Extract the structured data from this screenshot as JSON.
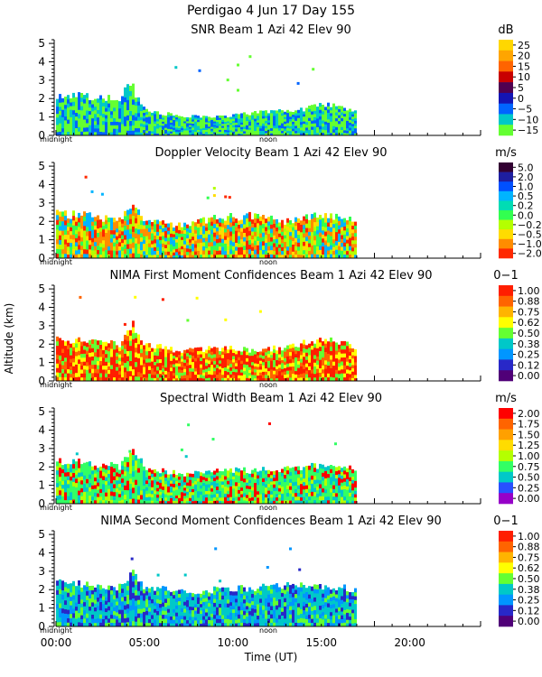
{
  "header": {
    "line1": "Perdigao    4 Jun 17 Day 155"
  },
  "common": {
    "ylabel": "Altitude (km)",
    "xlabel": "Time (UT)",
    "x_ticks": [
      "00:00",
      "05:00",
      "10:00",
      "15:00",
      "20:00"
    ],
    "x_tick_hours": [
      0,
      5,
      10,
      15,
      20
    ],
    "x_range_hours": [
      0,
      24
    ],
    "y_ticks": [
      "0",
      "1",
      "2",
      "3",
      "4",
      "5"
    ],
    "y_range_km": [
      0,
      5.2
    ],
    "midnight_label": "midnight",
    "noon_label": "noon",
    "data_end_hour": 17
  },
  "chart_data": [
    {
      "type": "heatmap",
      "title": "SNR Beam 1 Azi  42 Elev 90",
      "unit": "dB",
      "colorbar_labels": [
        "25",
        "20",
        "15",
        "10",
        "5",
        "0",
        "−5",
        "−10",
        "−15"
      ],
      "colorbar_colors": [
        "#ffd700",
        "#ffa500",
        "#ff6400",
        "#c80000",
        "#500050",
        "#1414b4",
        "#0064ff",
        "#00c8c8",
        "#64ff32"
      ],
      "field_color_indices": [
        8,
        8,
        7,
        6
      ],
      "top_envelope_km": [
        [
          0,
          2.2
        ],
        [
          2,
          2.1
        ],
        [
          3.5,
          2.0
        ],
        [
          4.2,
          2.8
        ],
        [
          4.8,
          1.5
        ],
        [
          6,
          1.2
        ],
        [
          8,
          1.0
        ],
        [
          10,
          1.1
        ],
        [
          12,
          1.3
        ],
        [
          14,
          1.4
        ],
        [
          15,
          1.7
        ],
        [
          16,
          1.6
        ],
        [
          17,
          1.2
        ]
      ]
    },
    {
      "type": "heatmap",
      "title": "Doppler Velocity Beam 1 Azi  42 Elev 90",
      "unit": "m/s",
      "colorbar_labels": [
        "5.0",
        "2.0",
        "1.0",
        "0.5",
        "0.2",
        "0.0",
        "−0.2",
        "−0.5",
        "−1.0",
        "−2.0"
      ],
      "colorbar_colors": [
        "#320032",
        "#1e1ea0",
        "#0050ff",
        "#00b4ff",
        "#00dcb4",
        "#32ff50",
        "#b4ff00",
        "#ffdc00",
        "#ff8c00",
        "#ff2800"
      ],
      "field_color_indices": [
        9,
        8,
        7,
        6,
        5,
        3
      ],
      "top_envelope_km": [
        [
          0,
          2.4
        ],
        [
          2,
          2.3
        ],
        [
          3.5,
          2.0
        ],
        [
          4.3,
          3.0
        ],
        [
          5,
          2.0
        ],
        [
          7,
          1.8
        ],
        [
          9,
          2.2
        ],
        [
          11,
          2.3
        ],
        [
          13,
          2.0
        ],
        [
          15,
          2.4
        ],
        [
          16,
          2.2
        ],
        [
          17,
          2.0
        ]
      ]
    },
    {
      "type": "heatmap",
      "title": "NIMA First Moment Confidences Beam 1 Azi  42 Elev 90",
      "unit": "0−1",
      "colorbar_labels": [
        "1.00",
        "0.88",
        "0.75",
        "0.62",
        "0.50",
        "0.38",
        "0.25",
        "0.12",
        "0.00"
      ],
      "colorbar_colors": [
        "#ff1e00",
        "#ff6400",
        "#ffb400",
        "#ffff00",
        "#64ff32",
        "#00c8c8",
        "#0096ff",
        "#2828c8",
        "#500078"
      ],
      "field_color_indices": [
        0,
        0,
        1,
        3,
        4
      ],
      "top_envelope_km": [
        [
          0,
          2.3
        ],
        [
          2,
          2.1
        ],
        [
          3.5,
          2.0
        ],
        [
          4.3,
          3.0
        ],
        [
          5,
          2.0
        ],
        [
          7,
          1.6
        ],
        [
          9,
          1.8
        ],
        [
          11,
          1.7
        ],
        [
          13,
          1.8
        ],
        [
          15,
          2.3
        ],
        [
          16,
          2.0
        ],
        [
          17,
          1.9
        ]
      ]
    },
    {
      "type": "heatmap",
      "title": "Spectral Width Beam 1 Azi  42 Elev 90",
      "unit": "m/s",
      "colorbar_labels": [
        "2.00",
        "1.75",
        "1.50",
        "1.25",
        "1.00",
        "0.75",
        "0.50",
        "0.25",
        "0.00"
      ],
      "colorbar_colors": [
        "#ff0000",
        "#ff6400",
        "#ffa000",
        "#ffdc00",
        "#b4ff00",
        "#32ff64",
        "#00c8c8",
        "#2850ff",
        "#9600c8"
      ],
      "field_color_indices": [
        5,
        5,
        6,
        4,
        0
      ],
      "top_envelope_km": [
        [
          0,
          2.3
        ],
        [
          2,
          2.2
        ],
        [
          3.5,
          2.0
        ],
        [
          4.3,
          3.0
        ],
        [
          5,
          2.0
        ],
        [
          7,
          1.6
        ],
        [
          9,
          1.8
        ],
        [
          11,
          1.8
        ],
        [
          13,
          1.9
        ],
        [
          15,
          2.1
        ],
        [
          16,
          2.0
        ],
        [
          17,
          1.8
        ]
      ]
    },
    {
      "type": "heatmap",
      "title": "NIMA Second Moment Confidences Beam 1 Azi  42 Elev 90",
      "unit": "0−1",
      "colorbar_labels": [
        "1.00",
        "0.88",
        "0.75",
        "0.62",
        "0.50",
        "0.38",
        "0.25",
        "0.12",
        "0.00"
      ],
      "colorbar_colors": [
        "#ff1e00",
        "#ff6400",
        "#ffb400",
        "#ffff00",
        "#64ff32",
        "#00c8c8",
        "#0096ff",
        "#2828c8",
        "#500078"
      ],
      "field_color_indices": [
        5,
        5,
        4,
        6,
        7
      ],
      "top_envelope_km": [
        [
          0,
          2.4
        ],
        [
          2,
          2.3
        ],
        [
          3.5,
          2.1
        ],
        [
          4.3,
          3.0
        ],
        [
          5,
          2.1
        ],
        [
          7,
          1.9
        ],
        [
          9,
          2.0
        ],
        [
          11,
          2.1
        ],
        [
          13,
          2.2
        ],
        [
          15,
          2.2
        ],
        [
          16,
          2.1
        ],
        [
          17,
          2.0
        ]
      ]
    }
  ]
}
